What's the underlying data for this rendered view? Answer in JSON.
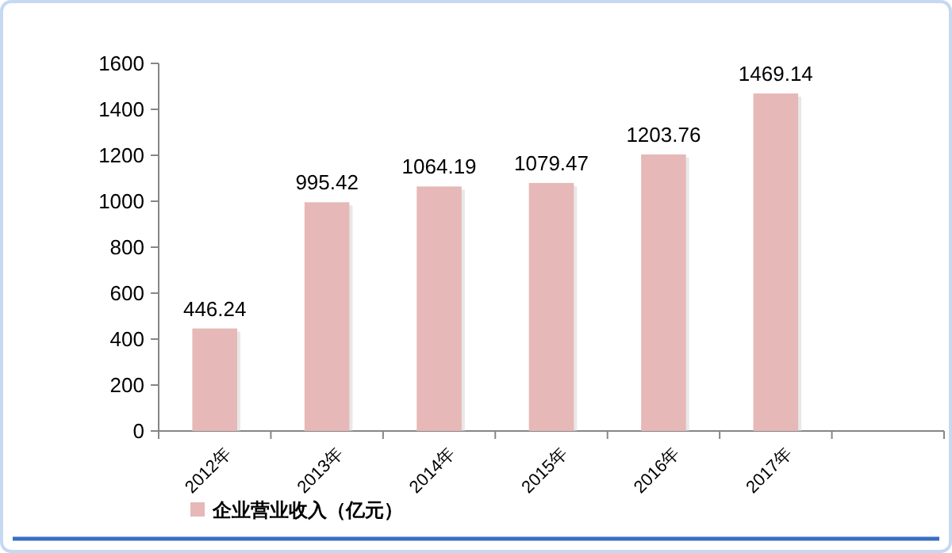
{
  "chart_data": {
    "type": "bar",
    "categories": [
      "2012年",
      "2013年",
      "2014年",
      "2015年",
      "2016年",
      "2017年",
      null
    ],
    "series": [
      {
        "name": "企业营业收入（亿元）",
        "color": "#e6b8b7",
        "values": [
          446.24,
          995.42,
          1064.19,
          1079.47,
          1203.76,
          1469.14,
          null
        ]
      }
    ],
    "ylim": [
      0,
      1600
    ],
    "yticks": [
      0,
      200,
      400,
      600,
      800,
      1000,
      1200,
      1400,
      1600
    ],
    "data_labels": true,
    "grid": false,
    "legend": "bottom left"
  }
}
